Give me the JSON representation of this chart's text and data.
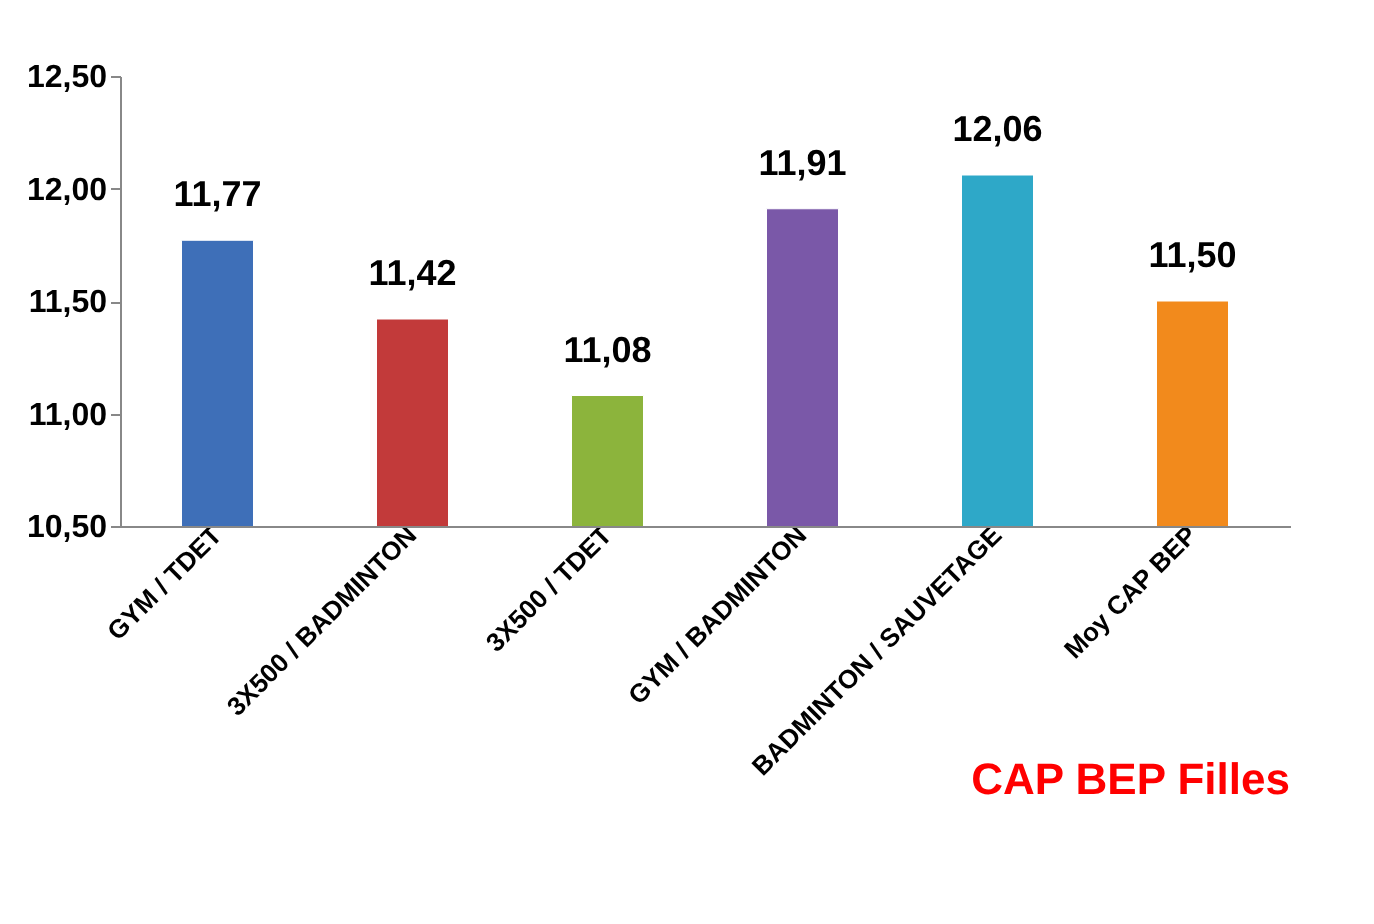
{
  "chart_data": {
    "type": "bar",
    "categories": [
      "GYM / TDET",
      "3X500 / BADMINTON",
      "3X500 / TDET",
      "GYM / BADMINTON",
      "BADMINTON / SAUVETAGE",
      "Moy CAP BEP"
    ],
    "values": [
      11.77,
      11.42,
      11.08,
      11.91,
      12.06,
      11.5
    ],
    "value_labels": [
      "11,77",
      "11,42",
      "11,08",
      "11,91",
      "12,06",
      "11,50"
    ],
    "colors": [
      "#3e6fb8",
      "#c23a3a",
      "#8cb43c",
      "#7a58a8",
      "#2ea8c8",
      "#f28a1c"
    ],
    "ylim": [
      10.5,
      12.5
    ],
    "yticks": [
      {
        "value": 10.5,
        "label": "10,50"
      },
      {
        "value": 11.0,
        "label": "11,00"
      },
      {
        "value": 11.5,
        "label": "11,50"
      },
      {
        "value": 12.0,
        "label": "12,00"
      },
      {
        "value": 12.5,
        "label": "12,50"
      }
    ],
    "annotations": [
      "CAP  BEP  Filles"
    ]
  }
}
